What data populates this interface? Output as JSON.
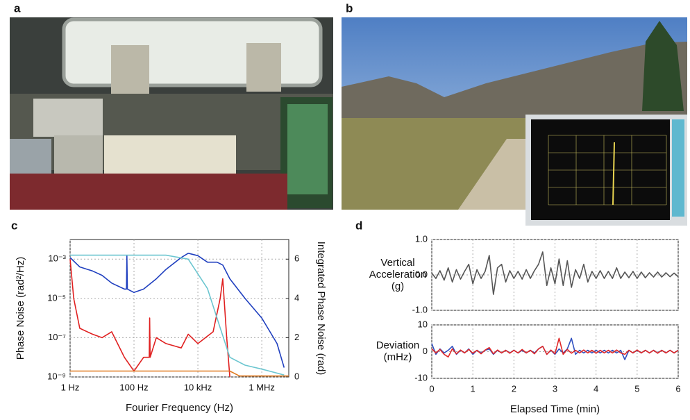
{
  "panel_labels": [
    "a",
    "b",
    "c",
    "d"
  ],
  "chart_data": [
    {
      "type": "line",
      "xlog": true,
      "ylog": true,
      "grid": true,
      "xlabel": "Fourier Frequency (Hz)",
      "ylabel": "Phase Noise (rad²/Hz)",
      "y2label": "Integrated Phase Noise (rad)",
      "xlim": [
        1,
        7000000
      ],
      "ylim": [
        1e-09,
        0.01
      ],
      "y2lim": [
        0,
        7
      ],
      "xticks": [
        {
          "value": 1,
          "label": "1 Hz"
        },
        {
          "value": 100,
          "label": "100 Hz"
        },
        {
          "value": 10000,
          "label": "10 kHz"
        },
        {
          "value": 1000000,
          "label": "1 MHz"
        }
      ],
      "yticks": [
        {
          "value": 0.001,
          "label": "10⁻³"
        },
        {
          "value": 1e-05,
          "label": "10⁻⁵"
        },
        {
          "value": 1e-07,
          "label": "10⁻⁷"
        },
        {
          "value": 1e-09,
          "label": "10⁻⁹"
        }
      ],
      "y2ticks": [
        0,
        2,
        4,
        6
      ],
      "series": [
        {
          "color": "#1f3fbf",
          "x": [
            1,
            2,
            5,
            10,
            20,
            50,
            58,
            60,
            62,
            100,
            200,
            500,
            1000,
            3000,
            5000,
            10000,
            20000,
            40000,
            60000,
            100000,
            300000,
            1000000,
            3000000,
            5000000
          ],
          "values": [
            0.0012,
            0.0004,
            0.00025,
            0.00015,
            6e-05,
            3e-05,
            3e-05,
            0.0015,
            3e-05,
            2e-05,
            3e-05,
            0.0001,
            0.0003,
            0.0012,
            0.002,
            0.0015,
            0.0007,
            0.0007,
            0.0005,
            0.0001,
            1e-05,
            1e-06,
            5e-08,
            3e-09
          ]
        },
        {
          "color": "#e02020",
          "x": [
            1,
            1.3,
            2,
            5,
            10,
            20,
            50,
            100,
            200,
            300,
            310,
            320,
            500,
            1000,
            3000,
            5000,
            10000,
            30000,
            50000,
            60000,
            80000,
            100000
          ],
          "values": [
            0.001,
            1e-05,
            3e-07,
            1.5e-07,
            1e-07,
            2e-07,
            1e-08,
            2e-09,
            1e-08,
            1e-08,
            1e-06,
            1e-08,
            1e-07,
            5e-08,
            3e-08,
            1.5e-07,
            5e-08,
            2e-07,
            1e-05,
            0.0001,
            1e-07,
            1e-09
          ]
        },
        {
          "color": "#e07a20",
          "axis": "y2",
          "x": [
            1,
            1000,
            100000,
            200000,
            7000000
          ],
          "values": [
            0.3,
            0.3,
            0.3,
            0.05,
            0.05
          ]
        },
        {
          "color": "#6cc6d0",
          "axis": "y2",
          "x": [
            1,
            1000,
            5000,
            20000,
            50000,
            100000,
            300000,
            1000000,
            5000000
          ],
          "values": [
            6.2,
            6.2,
            6.0,
            4.5,
            2.5,
            1.0,
            0.6,
            0.4,
            0.1
          ]
        }
      ]
    },
    {
      "type": "line",
      "grid": true,
      "show_xtick_labels": false,
      "ylabel": [
        "Vertical",
        "Acceleration",
        "(g)"
      ],
      "xlim": [
        0,
        6
      ],
      "ylim": [
        -1,
        1
      ],
      "xticks": [
        0,
        1,
        2,
        3,
        4,
        5,
        6
      ],
      "yticks": [
        {
          "value": -1,
          "label": "-1.0"
        },
        {
          "value": 0,
          "label": "0.0"
        },
        {
          "value": 1,
          "label": "1.0"
        }
      ],
      "series": [
        {
          "color": "#555555",
          "x": [
            0,
            0.1,
            0.2,
            0.3,
            0.4,
            0.5,
            0.6,
            0.7,
            0.8,
            0.9,
            1,
            1.1,
            1.2,
            1.3,
            1.4,
            1.5,
            1.6,
            1.7,
            1.8,
            1.9,
            2,
            2.1,
            2.2,
            2.3,
            2.4,
            2.5,
            2.6,
            2.7,
            2.8,
            2.9,
            3,
            3.1,
            3.2,
            3.3,
            3.4,
            3.5,
            3.6,
            3.7,
            3.8,
            3.9,
            4,
            4.1,
            4.2,
            4.3,
            4.4,
            4.5,
            4.6,
            4.7,
            4.8,
            4.9,
            5,
            5.1,
            5.2,
            5.3,
            5.4,
            5.5,
            5.6,
            5.7,
            5.8,
            5.9,
            6
          ],
          "values": [
            0.05,
            -0.1,
            0.12,
            -0.15,
            0.2,
            -0.2,
            0.15,
            -0.12,
            0.1,
            0.3,
            -0.25,
            0.15,
            -0.1,
            0.1,
            0.55,
            -0.55,
            0.2,
            0.3,
            -0.2,
            0.12,
            -0.1,
            0.1,
            -0.12,
            0.15,
            -0.1,
            0.12,
            0.3,
            0.65,
            -0.3,
            0.2,
            -0.25,
            0.45,
            -0.3,
            0.4,
            -0.35,
            0.15,
            -0.1,
            0.3,
            -0.2,
            0.1,
            -0.1,
            0.12,
            -0.1,
            0.1,
            -0.1,
            0.2,
            -0.1,
            0.08,
            -0.08,
            0.1,
            -0.1,
            0.08,
            -0.08,
            0.06,
            -0.06,
            0.08,
            -0.06,
            0.06,
            -0.05,
            0.05,
            -0.05
          ]
        }
      ]
    },
    {
      "type": "line",
      "grid": true,
      "show_xtick_labels": true,
      "xlabel": "Elapsed Time (min)",
      "ylabel": [
        "Deviation",
        "(mHz)"
      ],
      "xlim": [
        0,
        6
      ],
      "ylim": [
        -10,
        10
      ],
      "xticks": [
        0,
        1,
        2,
        3,
        4,
        5,
        6
      ],
      "yticks": [
        -10,
        0,
        10
      ],
      "series": [
        {
          "color": "#3050c0",
          "x": [
            0,
            0.1,
            0.2,
            0.3,
            0.4,
            0.5,
            0.6,
            0.7,
            0.8,
            0.9,
            1,
            1.1,
            1.2,
            1.3,
            1.4,
            1.5,
            1.6,
            1.7,
            1.8,
            1.9,
            2,
            2.1,
            2.2,
            2.3,
            2.4,
            2.5,
            2.6,
            2.7,
            2.8,
            2.9,
            3,
            3.1,
            3.2,
            3.3,
            3.4,
            3.5,
            3.6,
            3.7,
            3.8,
            3.9,
            4,
            4.1,
            4.2,
            4.3,
            4.4,
            4.5,
            4.6,
            4.7,
            4.8,
            4.9,
            5,
            5.1,
            5.2,
            5.3,
            5.4,
            5.5,
            5.6,
            5.7,
            5.8,
            5.9,
            6
          ],
          "values": [
            3,
            -1,
            1,
            -0.5,
            0.5,
            2,
            -1,
            0.5,
            -0.5,
            1,
            -1,
            0.5,
            -0.5,
            0.5,
            1,
            -1,
            0.5,
            -0.5,
            0.5,
            -0.5,
            0.5,
            -0.5,
            0.5,
            -0.5,
            0.5,
            -0.5,
            1,
            2,
            -1,
            0.5,
            -1,
            1,
            -0.5,
            1,
            5,
            -1,
            0.5,
            -0.5,
            0.5,
            -0.5,
            0.5,
            -0.5,
            0.5,
            -0.5,
            0.5,
            -0.5,
            0.5,
            -3,
            0.5,
            -0.5,
            0.5,
            -0.5,
            0.5,
            -0.5,
            0.5,
            -0.5,
            0.5,
            -0.5,
            0.5,
            -0.5,
            0.5
          ]
        },
        {
          "color": "#e02828",
          "x": [
            0,
            0.1,
            0.2,
            0.3,
            0.4,
            0.5,
            0.6,
            0.7,
            0.8,
            0.9,
            1,
            1.1,
            1.2,
            1.3,
            1.4,
            1.5,
            1.6,
            1.7,
            1.8,
            1.9,
            2,
            2.1,
            2.2,
            2.3,
            2.4,
            2.5,
            2.6,
            2.7,
            2.8,
            2.9,
            3,
            3.1,
            3.2,
            3.3,
            3.4,
            3.5,
            3.6,
            3.7,
            3.8,
            3.9,
            4,
            4.1,
            4.2,
            4.3,
            4.4,
            4.5,
            4.6,
            4.7,
            4.8,
            4.9,
            5,
            5.1,
            5.2,
            5.3,
            5.4,
            5.5,
            5.6,
            5.7,
            5.8,
            5.9,
            6
          ],
          "values": [
            1,
            -0.5,
            0.8,
            -1,
            -2,
            1,
            -0.8,
            0.6,
            -0.5,
            0.8,
            -0.6,
            0.5,
            -0.8,
            0.6,
            1.5,
            -0.8,
            0.6,
            -0.5,
            0.5,
            -0.6,
            0.5,
            -0.5,
            0.8,
            -0.5,
            0.5,
            -0.8,
            1,
            2,
            -1,
            0.6,
            -0.8,
            5,
            -1,
            0.8,
            -0.6,
            0.5,
            -0.5,
            0.6,
            -0.5,
            0.5,
            -0.6,
            0.5,
            -0.5,
            0.5,
            -0.5,
            0.6,
            -0.5,
            -1,
            0.5,
            -0.5,
            0.6,
            -0.5,
            0.5,
            -0.5,
            0.5,
            -0.6,
            0.5,
            -0.5,
            0.5,
            -0.5,
            0.5
          ]
        }
      ]
    }
  ]
}
